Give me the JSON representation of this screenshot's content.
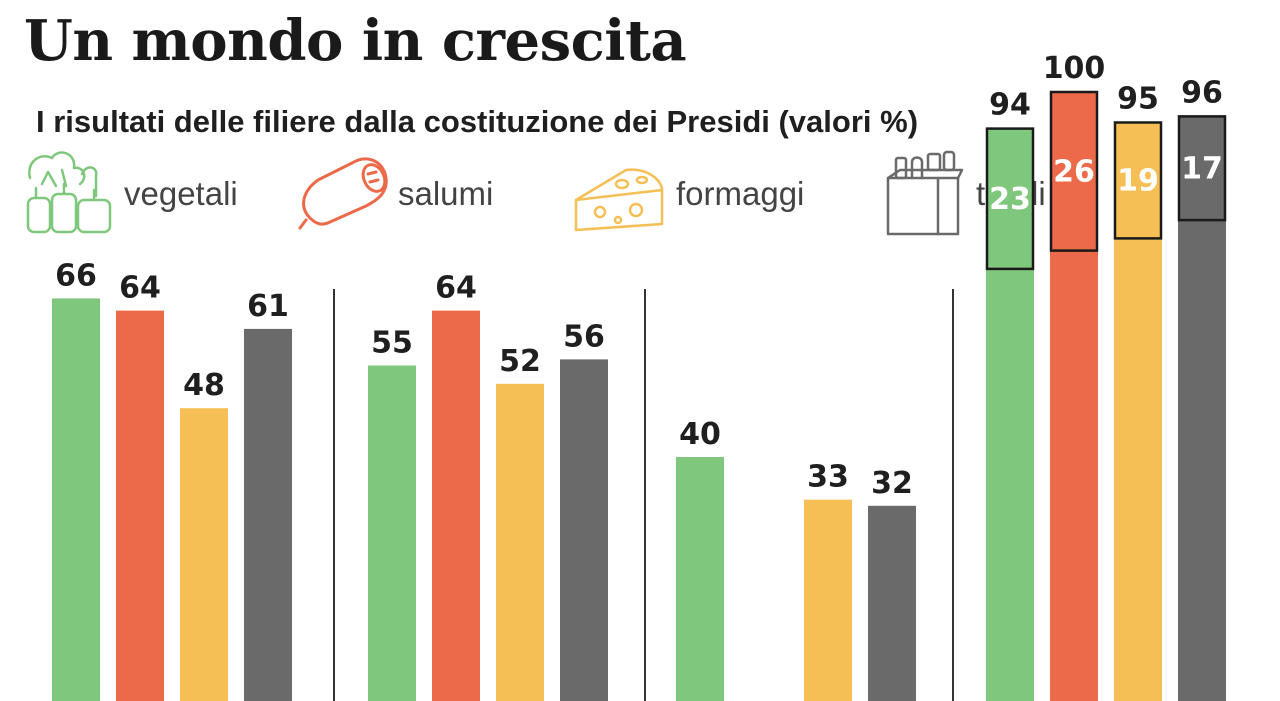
{
  "title": "Un mondo in crescita",
  "subtitle": "I risultati delle filiere dalla costituzione dei Presidi (valori %)",
  "colors": {
    "vegetali": "#80c77e",
    "salumi": "#ec6a4a",
    "formaggi": "#f6bf55",
    "totali": "#6a6a6a"
  },
  "legend": [
    {
      "key": "vegetali",
      "label": "vegetali",
      "icon": "vegetables-icon"
    },
    {
      "key": "salumi",
      "label": "salumi",
      "icon": "salami-icon"
    },
    {
      "key": "formaggi",
      "label": "formaggi",
      "icon": "cheese-icon"
    },
    {
      "key": "totali",
      "label": "totali",
      "icon": "grocery-bag-icon"
    }
  ],
  "chart_data": {
    "type": "bar",
    "title": "Un mondo in crescita",
    "subtitle": "I risultati delle filiere dalla costituzione dei Presidi (valori %)",
    "ylim": [
      0,
      100
    ],
    "grid": false,
    "legend_position": "top",
    "series_names": [
      "vegetali",
      "salumi",
      "formaggi",
      "totali"
    ],
    "groups": [
      {
        "values": [
          66,
          64,
          48,
          61
        ],
        "labels": [
          "66",
          "64",
          "48",
          "61"
        ]
      },
      {
        "values": [
          55,
          64,
          52,
          56
        ],
        "labels": [
          "55",
          "64",
          "52",
          "56"
        ]
      },
      {
        "values": [
          40,
          null,
          33,
          32
        ],
        "labels": [
          "40",
          "",
          "33",
          "32"
        ]
      },
      {
        "values": [
          94,
          100,
          95,
          96
        ],
        "labels": [
          "94",
          "100",
          "95",
          "96"
        ],
        "inner_values": [
          23,
          26,
          19,
          17
        ],
        "inner_labels": [
          "23",
          "26",
          "19",
          "17"
        ]
      }
    ]
  }
}
